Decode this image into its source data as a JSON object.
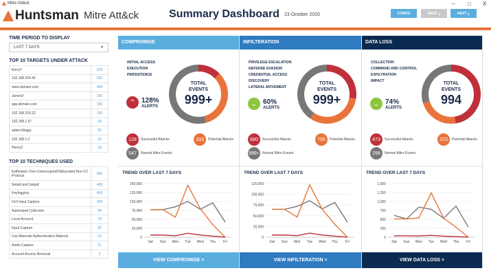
{
  "window": {
    "title": "Mitre Att&ck",
    "controls": [
      "–",
      "□",
      "X"
    ]
  },
  "header": {
    "logo": "Huntsman",
    "app": "Mitre Att&ck",
    "title": "Summary Dashboard",
    "date": "23 October 2020",
    "config": "CONFIG",
    "back": "BACK",
    "next": "NEXT"
  },
  "sidebar": {
    "period_label": "TIME PERIOD TO DISPLAY",
    "period_value": "LAST 7 DAYS",
    "targets_title": "TOP 10 TARGETS UNDER ATTACK",
    "targets": [
      [
        "KerryT",
        "678"
      ],
      [
        "192.168.204.40",
        "530"
      ],
      [
        "www.domain.com",
        "405"
      ],
      [
        "JamesF",
        "242"
      ],
      [
        "app.domain.com",
        "156"
      ],
      [
        "192.168.203.22",
        "130"
      ],
      [
        "192.168.1.57",
        "34"
      ],
      [
        "adam.bloggs",
        "32"
      ],
      [
        "192.168.1.2",
        "22"
      ],
      [
        "HenryZ",
        "18"
      ]
    ],
    "techniques_title": "TOP 10 TECHNIQUES USED",
    "techniques": [
      [
        "Exfiltration Over Unencrypted/Obfuscated Non-C2 Protocol",
        "960"
      ],
      [
        "Setuid and Setgid",
        "406"
      ],
      [
        "Keylogging",
        "400"
      ],
      [
        "GUI Input Capture",
        "304"
      ],
      [
        "Automated Collection",
        "99"
      ],
      [
        "Local Account",
        "78"
      ],
      [
        "Input Capture",
        "35"
      ],
      [
        "Use Alternate Authentication Material",
        "23"
      ],
      [
        "Audio Capture",
        "21"
      ],
      [
        "Account Access Removal",
        "2"
      ]
    ]
  },
  "colors": {
    "successful": "#c0303a",
    "potential": "#e8743b",
    "normal": "#777777",
    "up": "#c0303a",
    "down": "#8dc63f"
  },
  "panels": [
    {
      "title": "COMPROMISE",
      "color": "#5aaddf",
      "categories": [
        "INITIAL ACCESS",
        "EXECUTION",
        "PERSISTENCE"
      ],
      "alert_dir": "up",
      "alert_pct": "128%",
      "alert_label": "ALERTS",
      "total_label": "TOTAL EVENTS",
      "total": "999+",
      "successful": "128",
      "potential": "333",
      "normal": "547",
      "successful_label": "Successful Attacks",
      "potential_label": "Potential Attacks",
      "normal_label": "Normal Mitre Events",
      "trend_title": "TREND OVER LAST 7 DAYS",
      "button": "VIEW COMPROMISE >"
    },
    {
      "title": "INFILTERATION",
      "color": "#2f7bbf",
      "categories": [
        "PRIVILEGE ESCALATION",
        "DEFENSE EVASION",
        "CREDENTIAL ACCESS",
        "DISCOVERY",
        "LATERAL MOVEMENT"
      ],
      "alert_dir": "down",
      "alert_pct": "60%",
      "alert_label": "ALERTS",
      "total_label": "TOTAL EVENTS",
      "total": "999+",
      "successful": "680",
      "potential": "796",
      "normal": "999+",
      "successful_label": "Successful Attacks",
      "potential_label": "Potential Attacks",
      "normal_label": "Normal Mitre Events",
      "trend_title": "TREND OVER LAST 7 DAYS",
      "button": "VIEW INFILTERATION >"
    },
    {
      "title": "DATA LOSS",
      "color": "#0b2a4f",
      "categories": [
        "COLLECTION",
        "COMMAND AND CONTROL",
        "EXFILTRATION",
        "IMPACT"
      ],
      "alert_dir": "down",
      "alert_pct": "74%",
      "alert_label": "ALERTS",
      "total_label": "TOTAL EVENTS",
      "total": "994",
      "successful": "473",
      "potential": "223",
      "normal": "298",
      "successful_label": "Successful Attacks",
      "potential_label": "Potential Attacks",
      "normal_label": "Normal Mitre Events",
      "trend_title": "TREND OVER LAST 7 DAYS",
      "button": "VIEW DATA LOSS >"
    }
  ],
  "chart_data": [
    {
      "type": "line",
      "title": "TREND OVER LAST 7 DAYS",
      "categories": [
        "Sat",
        "Sun",
        "Mon",
        "Tue",
        "Wed",
        "Thu",
        "Fri"
      ],
      "ylim": [
        0,
        150000
      ],
      "yticks": [
        "0",
        "25,000",
        "50,000",
        "75,000",
        "100,000",
        "125,000",
        "150,000"
      ],
      "grid": true,
      "series": [
        {
          "color": "#777777",
          "values": [
            77000,
            77000,
            85000,
            100000,
            78000,
            96000,
            42000
          ]
        },
        {
          "color": "#e8743b",
          "values": [
            77000,
            77000,
            56000,
            145000,
            80000,
            35000,
            0
          ]
        },
        {
          "color": "#c0303a",
          "values": [
            6000,
            6000,
            4000,
            11000,
            6000,
            3000,
            0
          ]
        }
      ]
    },
    {
      "type": "line",
      "title": "TREND OVER LAST 7 DAYS",
      "categories": [
        "Sat",
        "Sun",
        "Mon",
        "Tue",
        "Wed",
        "Thu",
        "Fri"
      ],
      "ylim": [
        0,
        125000
      ],
      "yticks": [
        "0",
        "25,000",
        "50,000",
        "75,000",
        "100,000",
        "125,000"
      ],
      "grid": true,
      "series": [
        {
          "color": "#777777",
          "values": [
            65000,
            65000,
            72000,
            85000,
            66000,
            81000,
            35000
          ]
        },
        {
          "color": "#e8743b",
          "values": [
            65000,
            65000,
            47000,
            122000,
            65000,
            30000,
            0
          ]
        },
        {
          "color": "#c0303a",
          "values": [
            5000,
            5000,
            3500,
            9500,
            5000,
            2500,
            0
          ]
        }
      ]
    },
    {
      "type": "line",
      "title": "TREND OVER LAST 7 DAYS",
      "categories": [
        "Sat",
        "Sun",
        "Mon",
        "Tue",
        "Wed",
        "Thu",
        "Fri"
      ],
      "ylim": [
        0,
        1500
      ],
      "yticks": [
        "0",
        "250",
        "500",
        "750",
        "1,000",
        "1,250",
        "1,500"
      ],
      "grid": true,
      "series": [
        {
          "color": "#777777",
          "values": [
            610,
            510,
            840,
            780,
            530,
            870,
            280
          ]
        },
        {
          "color": "#e8743b",
          "values": [
            510,
            510,
            540,
            1240,
            530,
            280,
            0
          ]
        },
        {
          "color": "#c0303a",
          "values": [
            40,
            40,
            35,
            55,
            30,
            15,
            5
          ]
        }
      ]
    }
  ]
}
